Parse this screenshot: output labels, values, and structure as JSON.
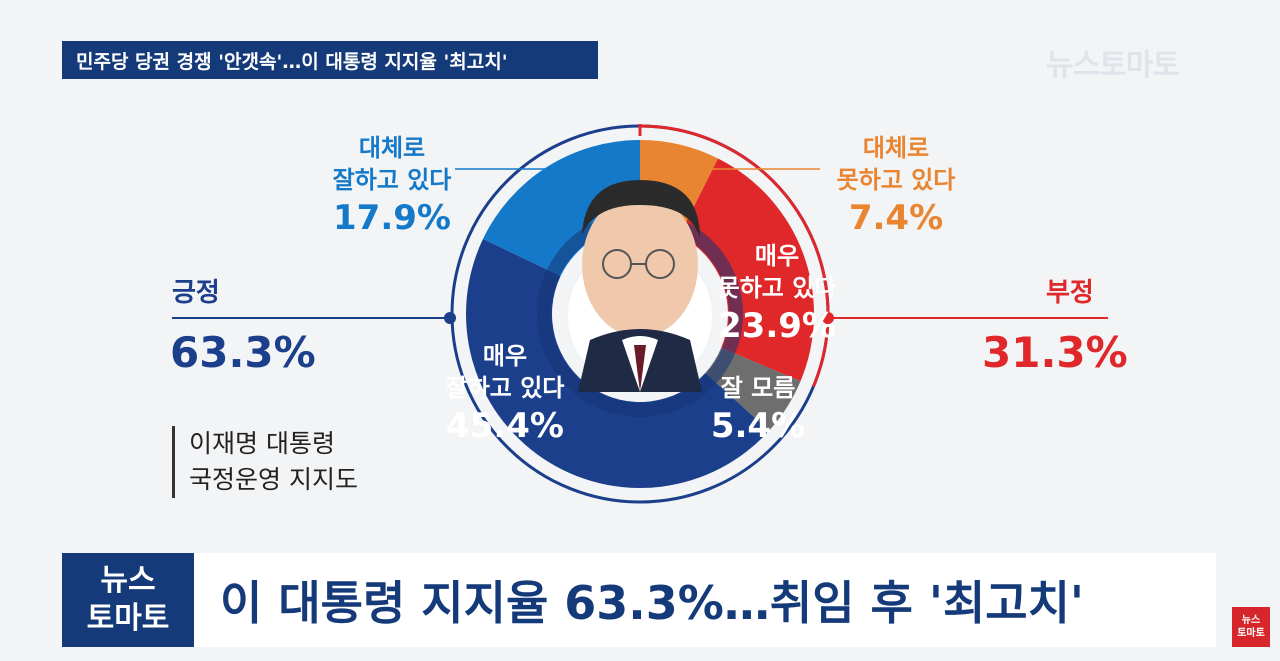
{
  "banner": {
    "title": "민주당 당권 경쟁 '안갯속'…이 대통령 지지율 '최고치'"
  },
  "brand": {
    "name": "뉴스토마토",
    "line1": "뉴스",
    "line2": "토마토"
  },
  "labels": {
    "mostly_good": {
      "text1": "대체로",
      "text2": "잘하고 있다",
      "pct": "17.9%"
    },
    "mostly_bad": {
      "text1": "대체로",
      "text2": "못하고 있다",
      "pct": "7.4%"
    },
    "very_bad": {
      "text1": "매우",
      "text2": "못하고 있다",
      "pct": "23.9%"
    },
    "very_good": {
      "text1": "매우",
      "text2": "잘하고 있다",
      "pct": "45.4%"
    },
    "unknown": {
      "text1": "잘 모름",
      "pct": "5.4%"
    }
  },
  "positive": {
    "title": "긍정",
    "pct": "63.3%"
  },
  "negative": {
    "title": "부정",
    "pct": "31.3%"
  },
  "caption": {
    "line1": "이재명 대통령",
    "line2": "국정운영 지지도"
  },
  "headline": {
    "text": "이 대통령 지지율 63.3%…취임 후 '최고치'"
  },
  "colors": {
    "navy": "#1c3f8c",
    "blue": "#1479c9",
    "orange": "#e98531",
    "red": "#e0272a",
    "gray": "#6e6e6e",
    "banner": "#143a7a"
  },
  "chart_data": {
    "type": "pie",
    "categories": [
      "대체로 못하고 있다",
      "매우 못하고 있다",
      "잘 모름",
      "매우 잘하고 있다",
      "대체로 잘하고 있다"
    ],
    "values": [
      7.4,
      23.9,
      5.4,
      45.4,
      17.9
    ]
  }
}
